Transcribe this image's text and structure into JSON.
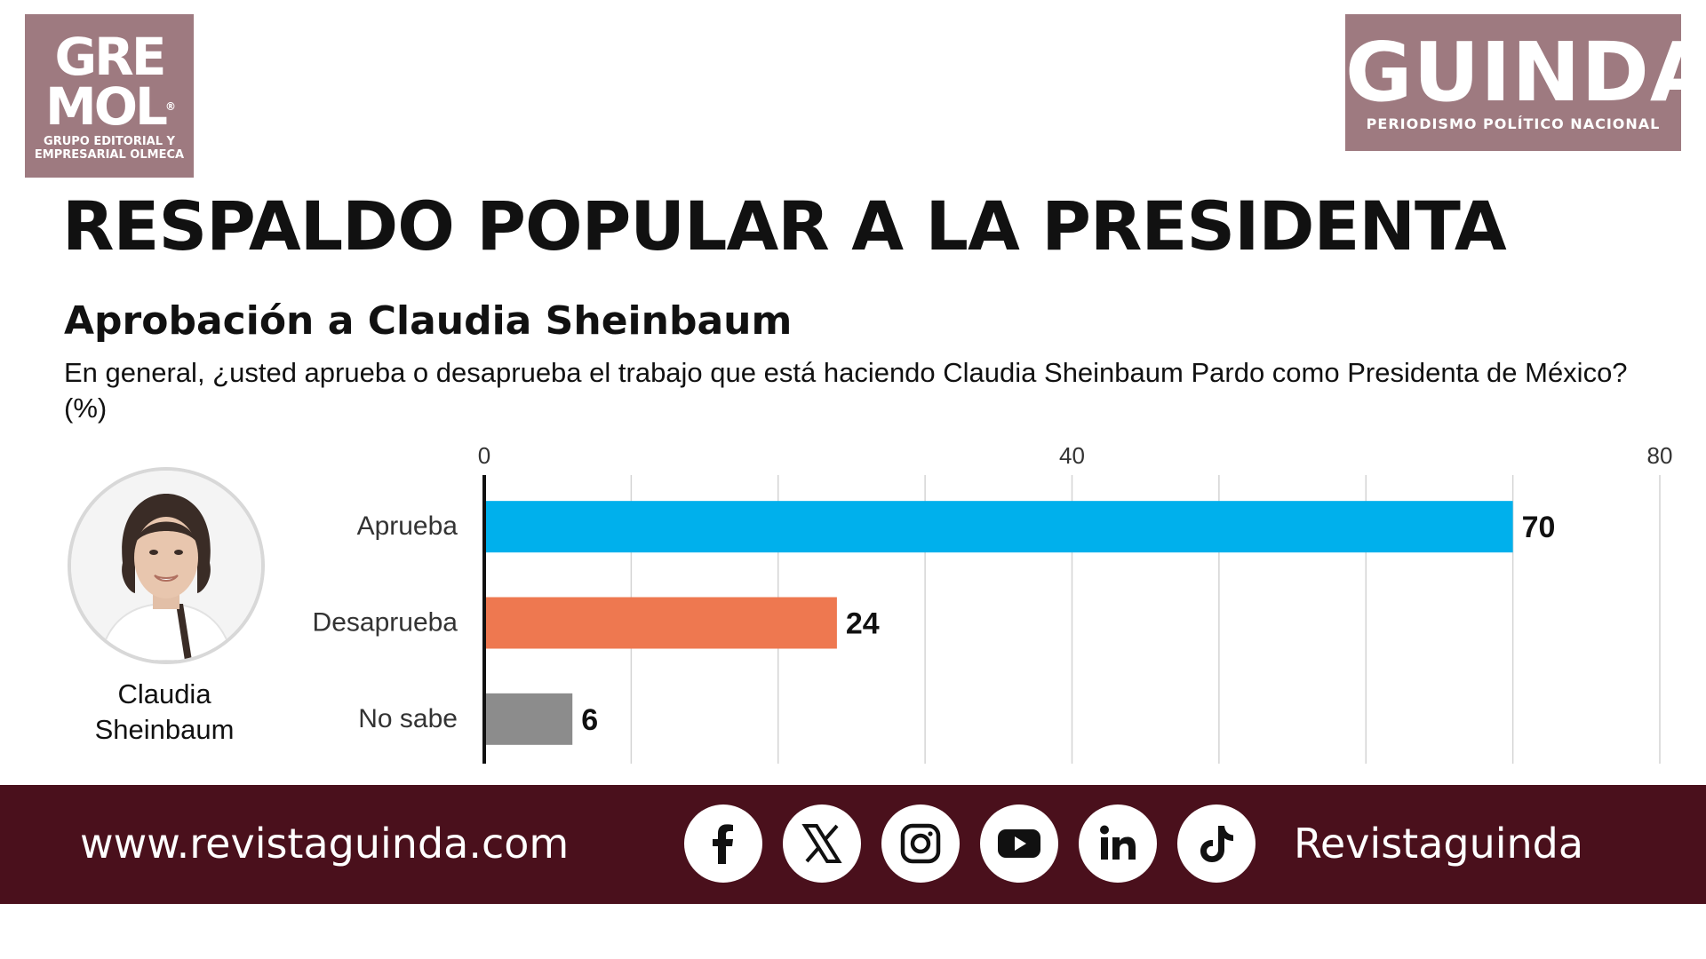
{
  "logos": {
    "left": {
      "line1": "GRE",
      "line2": "MOL",
      "mark": "®",
      "tagline1": "GRUPO EDITORIAL Y",
      "tagline2": "EMPRESARIAL OLMECA",
      "color": "#9e7a80"
    },
    "right": {
      "name": "GUINDA",
      "tagline": "PERIODISMO POLÍTICO NACIONAL",
      "color": "#9e7a80"
    }
  },
  "title": "RESPALDO POPULAR A LA PRESIDENTA",
  "subtitle": "Aprobación a Claudia Sheinbaum",
  "question": "En general, ¿usted aprueba o desaprueba el trabajo que está haciendo Claudia Sheinbaum Pardo como Presidenta de México?  (%)",
  "person": {
    "name_line1": "Claudia",
    "name_line2": "Sheinbaum",
    "photo_icon": "portrait-icon"
  },
  "chart_data": {
    "type": "bar",
    "orientation": "horizontal",
    "categories": [
      "Aprueba",
      "Desaprueba",
      "No sabe"
    ],
    "values": [
      70,
      24,
      6
    ],
    "colors": [
      "#00b0ec",
      "#ee7850",
      "#8c8c8c"
    ],
    "xlim": [
      0,
      80
    ],
    "xticks": [
      0,
      40,
      80
    ],
    "gridlines": [
      0,
      10,
      20,
      30,
      40,
      50,
      60,
      70,
      80
    ],
    "grid": true,
    "axis_position": "top"
  },
  "footer": {
    "website": "www.revistaguinda.com",
    "handle": "Revistaguinda",
    "background": "#4a101c",
    "icons": [
      "facebook-icon",
      "x-icon",
      "instagram-icon",
      "youtube-icon",
      "linkedin-icon",
      "tiktok-icon"
    ]
  }
}
